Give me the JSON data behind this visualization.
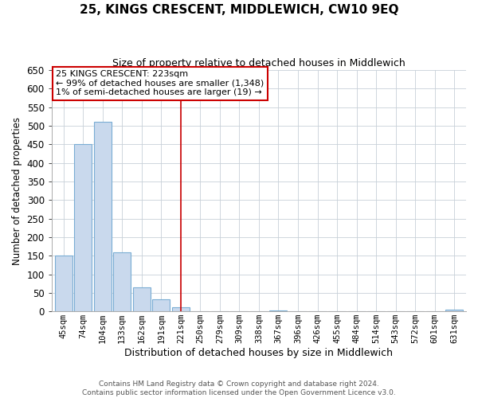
{
  "title": "25, KINGS CRESCENT, MIDDLEWICH, CW10 9EQ",
  "subtitle": "Size of property relative to detached houses in Middlewich",
  "xlabel": "Distribution of detached houses by size in Middlewich",
  "ylabel": "Number of detached properties",
  "footer_line1": "Contains HM Land Registry data © Crown copyright and database right 2024.",
  "footer_line2": "Contains public sector information licensed under the Open Government Licence v3.0.",
  "bar_labels": [
    "45sqm",
    "74sqm",
    "104sqm",
    "133sqm",
    "162sqm",
    "191sqm",
    "221sqm",
    "250sqm",
    "279sqm",
    "309sqm",
    "338sqm",
    "367sqm",
    "396sqm",
    "426sqm",
    "455sqm",
    "484sqm",
    "514sqm",
    "543sqm",
    "572sqm",
    "601sqm",
    "631sqm"
  ],
  "bar_values": [
    150,
    450,
    510,
    160,
    65,
    33,
    12,
    0,
    0,
    0,
    0,
    3,
    0,
    0,
    0,
    0,
    0,
    0,
    0,
    0,
    5
  ],
  "bar_fill_color": "#c9d9ed",
  "bar_edge_color": "#7aadd4",
  "vline_x_idx": 6,
  "vline_color": "#cc0000",
  "ylim": [
    0,
    650
  ],
  "yticks": [
    0,
    50,
    100,
    150,
    200,
    250,
    300,
    350,
    400,
    450,
    500,
    550,
    600,
    650
  ],
  "annotation_title": "25 KINGS CRESCENT: 223sqm",
  "annotation_line1": "← 99% of detached houses are smaller (1,348)",
  "annotation_line2": "1% of semi-detached houses are larger (19) →",
  "annotation_box_facecolor": "#ffffff",
  "annotation_box_edgecolor": "#cc0000",
  "bg_color": "#ffffff",
  "grid_color": "#c8d0d8",
  "title_fontsize": 11,
  "subtitle_fontsize": 9,
  "ylabel_fontsize": 8.5,
  "xlabel_fontsize": 9,
  "ytick_fontsize": 8.5,
  "xtick_fontsize": 7.5,
  "annotation_fontsize": 8,
  "footer_fontsize": 6.5
}
